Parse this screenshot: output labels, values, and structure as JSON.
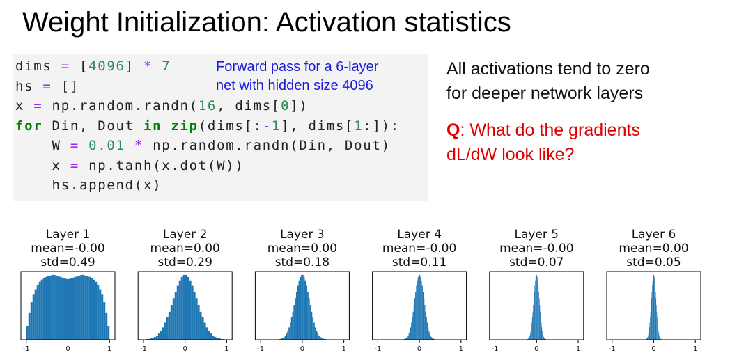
{
  "slide": {
    "title": "Weight Initialization: Activation statistics",
    "code_lines": [
      "dims = [4096] * 7",
      "hs = []",
      "x = np.random.randn(16, dims[0])",
      "for Din, Dout in zip(dims[:-1], dims[1:]):",
      "    W = 0.01 * np.random.randn(Din, Dout)",
      "    x = np.tanh(x.dot(W))",
      "    hs.append(x)"
    ],
    "comment": [
      "Forward pass for a 6-layer",
      "net with hidden size 4096"
    ],
    "notes": [
      "All activations tend to zero",
      "for deeper network layers"
    ],
    "question": {
      "label": "Q",
      "lines": [
        ": What do the gradients",
        "dL/dW look like?"
      ]
    }
  },
  "chart_data": [
    {
      "type": "histogram",
      "title": "Layer 1",
      "subtitle": [
        "mean=-0.00",
        "std=0.49"
      ],
      "color": "#1f77b4",
      "bins": [
        -1,
        -0.95,
        -0.9,
        -0.85,
        -0.8,
        -0.75,
        -0.7,
        -0.65,
        -0.6,
        -0.55,
        -0.5,
        -0.45,
        -0.4,
        -0.35,
        -0.3,
        -0.25,
        -0.2,
        -0.15,
        -0.1,
        -0.05,
        0,
        0.05,
        0.1,
        0.15,
        0.2,
        0.25,
        0.3,
        0.35,
        0.4,
        0.45,
        0.5,
        0.55,
        0.6,
        0.65,
        0.7,
        0.75,
        0.8,
        0.85,
        0.9,
        0.95,
        1
      ],
      "counts": [
        20,
        40,
        55,
        66,
        74,
        80,
        85,
        88,
        90,
        92,
        93,
        94,
        95,
        95,
        94,
        93,
        92,
        91,
        90,
        89,
        89,
        90,
        91,
        92,
        93,
        94,
        95,
        95,
        94,
        93,
        92,
        90,
        88,
        85,
        80,
        74,
        66,
        55,
        40,
        20
      ],
      "xlim": [
        -1.13,
        1.13
      ],
      "xticks": [
        -1,
        0,
        1
      ],
      "ylim": [
        0,
        100
      ]
    },
    {
      "type": "histogram",
      "title": "Layer 2",
      "subtitle": [
        "mean=0.00",
        "std=0.29"
      ],
      "color": "#1f77b4",
      "bins": [
        -1,
        -0.95,
        -0.9,
        -0.85,
        -0.8,
        -0.75,
        -0.7,
        -0.65,
        -0.6,
        -0.55,
        -0.5,
        -0.45,
        -0.4,
        -0.35,
        -0.3,
        -0.25,
        -0.2,
        -0.15,
        -0.1,
        -0.05,
        0,
        0.05,
        0.1,
        0.15,
        0.2,
        0.25,
        0.3,
        0.35,
        0.4,
        0.45,
        0.5,
        0.55,
        0.6,
        0.65,
        0.7,
        0.75,
        0.8,
        0.85,
        0.9,
        0.95,
        1
      ],
      "counts": [
        0,
        1,
        1,
        2,
        3,
        4,
        6,
        9,
        13,
        18,
        25,
        33,
        41,
        51,
        61,
        70,
        79,
        87,
        92,
        95,
        95,
        92,
        87,
        79,
        70,
        61,
        51,
        41,
        33,
        25,
        18,
        13,
        9,
        6,
        4,
        3,
        2,
        1,
        1,
        0
      ],
      "xlim": [
        -1.13,
        1.13
      ],
      "xticks": [
        -1,
        0,
        1
      ],
      "ylim": [
        0,
        100
      ]
    },
    {
      "type": "histogram",
      "title": "Layer 3",
      "subtitle": [
        "mean=0.00",
        "std=0.18"
      ],
      "color": "#1f77b4",
      "bins": [
        -0.6,
        -0.57,
        -0.54,
        -0.51,
        -0.48,
        -0.45,
        -0.42,
        -0.39,
        -0.36,
        -0.33,
        -0.3,
        -0.27,
        -0.24,
        -0.21,
        -0.18,
        -0.15,
        -0.12,
        -0.09,
        -0.06,
        -0.03,
        0,
        0.03,
        0.06,
        0.09,
        0.12,
        0.15,
        0.18,
        0.21,
        0.24,
        0.27,
        0.3,
        0.33,
        0.36,
        0.39,
        0.42,
        0.45,
        0.48,
        0.51,
        0.54,
        0.57,
        0.6
      ],
      "counts": [
        0,
        1,
        1,
        2,
        3,
        4,
        6,
        9,
        13,
        18,
        25,
        33,
        41,
        51,
        61,
        70,
        79,
        87,
        92,
        95,
        95,
        92,
        87,
        79,
        70,
        61,
        51,
        41,
        33,
        25,
        18,
        13,
        9,
        6,
        4,
        3,
        2,
        1,
        1,
        0
      ],
      "xlim": [
        -1.13,
        1.13
      ],
      "xticks": [
        -1,
        0,
        1
      ],
      "ylim": [
        0,
        100
      ]
    },
    {
      "type": "histogram",
      "title": "Layer 4",
      "subtitle": [
        "mean=-0.00",
        "std=0.11"
      ],
      "color": "#1f77b4",
      "bins": [
        -0.4,
        -0.38,
        -0.36,
        -0.34,
        -0.32,
        -0.3,
        -0.28,
        -0.26,
        -0.24,
        -0.22,
        -0.2,
        -0.18,
        -0.16,
        -0.14,
        -0.12,
        -0.1,
        -0.08,
        -0.06,
        -0.04,
        -0.02,
        0,
        0.02,
        0.04,
        0.06,
        0.08,
        0.1,
        0.12,
        0.14,
        0.16,
        0.18,
        0.2,
        0.22,
        0.24,
        0.26,
        0.28,
        0.3,
        0.32,
        0.34,
        0.36,
        0.38,
        0.4
      ],
      "counts": [
        0,
        1,
        1,
        2,
        3,
        4,
        6,
        9,
        13,
        18,
        25,
        33,
        41,
        51,
        61,
        70,
        79,
        87,
        92,
        95,
        95,
        92,
        87,
        79,
        70,
        61,
        51,
        41,
        33,
        25,
        18,
        13,
        9,
        6,
        4,
        3,
        2,
        1,
        1,
        0
      ],
      "xlim": [
        -1.13,
        1.13
      ],
      "xticks": [
        -1,
        0,
        1
      ],
      "ylim": [
        0,
        100
      ]
    },
    {
      "type": "histogram",
      "title": "Layer 5",
      "subtitle": [
        "mean=-0.00",
        "std=0.07"
      ],
      "color": "#1f77b4",
      "bins": [
        -0.24,
        -0.228,
        -0.216,
        -0.204,
        -0.192,
        -0.18,
        -0.168,
        -0.156,
        -0.144,
        -0.132,
        -0.12,
        -0.108,
        -0.096,
        -0.084,
        -0.072,
        -0.06,
        -0.048,
        -0.036,
        -0.024,
        -0.012,
        0,
        0.012,
        0.024,
        0.036,
        0.048,
        0.06,
        0.072,
        0.084,
        0.096,
        0.108,
        0.12,
        0.132,
        0.144,
        0.156,
        0.168,
        0.18,
        0.192,
        0.204,
        0.216,
        0.228,
        0.24
      ],
      "counts": [
        0,
        1,
        1,
        2,
        3,
        4,
        6,
        9,
        13,
        18,
        25,
        33,
        41,
        51,
        61,
        70,
        79,
        87,
        92,
        95,
        95,
        92,
        87,
        79,
        70,
        61,
        51,
        41,
        33,
        25,
        18,
        13,
        9,
        6,
        4,
        3,
        2,
        1,
        1,
        0
      ],
      "xlim": [
        -1.13,
        1.13
      ],
      "xticks": [
        -1,
        0,
        1
      ],
      "ylim": [
        0,
        100
      ]
    },
    {
      "type": "histogram",
      "title": "Layer 6",
      "subtitle": [
        "mean=0.00",
        "std=0.05"
      ],
      "color": "#1f77b4",
      "bins": [
        -0.2,
        -0.19,
        -0.18,
        -0.17,
        -0.16,
        -0.15,
        -0.14,
        -0.13,
        -0.12,
        -0.11,
        -0.1,
        -0.09,
        -0.08,
        -0.07,
        -0.06,
        -0.05,
        -0.04,
        -0.03,
        -0.02,
        -0.01,
        0,
        0.01,
        0.02,
        0.03,
        0.04,
        0.05,
        0.06,
        0.07,
        0.08,
        0.09,
        0.1,
        0.11,
        0.12,
        0.13,
        0.14,
        0.15,
        0.16,
        0.17,
        0.18,
        0.19,
        0.2
      ],
      "counts": [
        0,
        1,
        1,
        2,
        3,
        4,
        6,
        9,
        13,
        18,
        25,
        33,
        41,
        51,
        61,
        70,
        79,
        87,
        92,
        95,
        95,
        92,
        87,
        79,
        70,
        61,
        51,
        41,
        33,
        25,
        18,
        13,
        9,
        6,
        4,
        3,
        2,
        1,
        1,
        0
      ],
      "xlim": [
        -1.13,
        1.13
      ],
      "xticks": [
        -1,
        0,
        1
      ],
      "ylim": [
        0,
        100
      ]
    }
  ]
}
